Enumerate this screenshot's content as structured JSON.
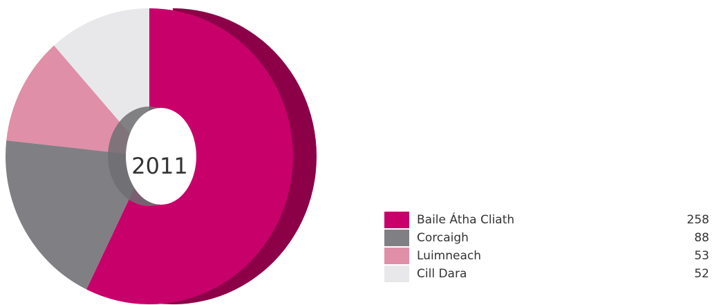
{
  "chart_data": {
    "type": "pie",
    "center_label": "2011",
    "series": [
      {
        "name": "Baile Átha Cliath",
        "value": 258,
        "color": "#c8006a"
      },
      {
        "name": "Corcaigh",
        "value": 88,
        "color": "#808084"
      },
      {
        "name": "Luimneach",
        "value": 53,
        "color": "#e08fa8"
      },
      {
        "name": "Cill Dara",
        "value": 52,
        "color": "#e8e8ea"
      }
    ],
    "shadow_color": "#8c0048",
    "legend_position": "bottom-right"
  }
}
